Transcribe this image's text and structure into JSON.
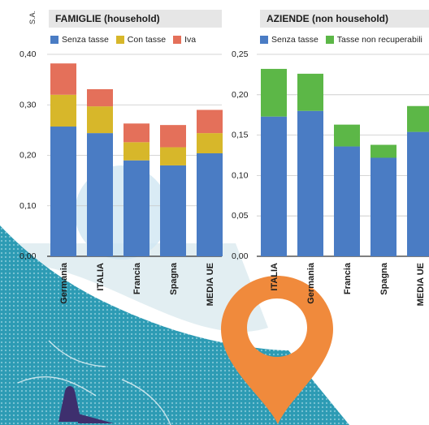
{
  "unit_label": "S.A.",
  "colors": {
    "blue": "#4a7cc4",
    "yellow": "#d7b72a",
    "red": "#e4705a",
    "green": "#5cb747",
    "header_bg": "#e6e6e6",
    "map_sea": "#e2eef2",
    "map_land": "#2d9bb4",
    "pin": "#f08a3c"
  },
  "chart_data": [
    {
      "type": "bar",
      "stacked": true,
      "title": "FAMIGLIE (household)",
      "categories": [
        "Germania",
        "ITALIA",
        "Francia",
        "Spagna",
        "MEDIA UE"
      ],
      "series": [
        {
          "name": "Senza tasse",
          "color": "#4a7cc4",
          "values": [
            0.257,
            0.244,
            0.19,
            0.18,
            0.204
          ]
        },
        {
          "name": "Con tasse",
          "color": "#d7b72a",
          "values": [
            0.063,
            0.053,
            0.036,
            0.036,
            0.04
          ]
        },
        {
          "name": "Iva",
          "color": "#e4705a",
          "values": [
            0.062,
            0.034,
            0.037,
            0.044,
            0.046
          ]
        }
      ],
      "ylim": [
        0,
        0.4
      ],
      "yticks": [
        "0,00",
        "0,10",
        "0,20",
        "0,30",
        "0,40"
      ],
      "legend_position": "top",
      "grid": true
    },
    {
      "type": "bar",
      "stacked": true,
      "title": "AZIENDE (non household)",
      "categories": [
        "ITALIA",
        "Germania",
        "Francia",
        "Spagna",
        "MEDIA UE"
      ],
      "series": [
        {
          "name": "Senza tasse",
          "color": "#4a7cc4",
          "values": [
            0.173,
            0.18,
            0.136,
            0.122,
            0.154
          ]
        },
        {
          "name": "Tasse non recuperabili",
          "color": "#5cb747",
          "values": [
            0.059,
            0.046,
            0.027,
            0.016,
            0.032
          ]
        }
      ],
      "ylim": [
        0,
        0.25
      ],
      "yticks": [
        "0,00",
        "0,05",
        "0,10",
        "0,15",
        "0,20",
        "0,25"
      ],
      "legend_position": "top",
      "grid": true
    }
  ]
}
